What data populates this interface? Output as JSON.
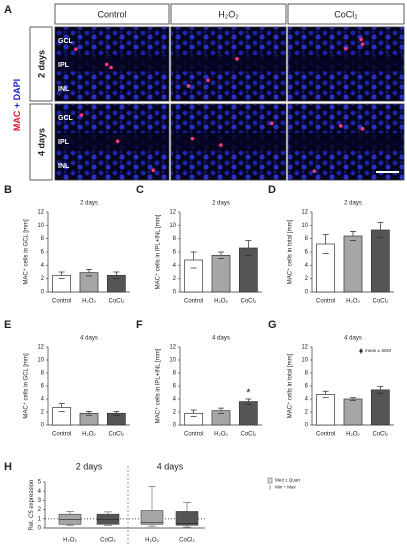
{
  "panel_a": {
    "label": "A",
    "columns": [
      "Control",
      "H₂O₂",
      "CoCl₂"
    ],
    "stain": {
      "mac": "MAC",
      "dapi": "+ DAPI"
    },
    "rows": [
      "2 days",
      "4 days"
    ],
    "layers": [
      "GCL",
      "IPL",
      "INL"
    ]
  },
  "chart_data": [
    {
      "type": "bar",
      "panel": "B",
      "title": "2 days",
      "y_label": "MAC⁺ cells in GCL [mm]",
      "categories": [
        "Control",
        "H₂O₂",
        "CoCl₂"
      ],
      "values": [
        2.5,
        2.9,
        2.5
      ],
      "errors": [
        0.5,
        0.5,
        0.5
      ],
      "colors": [
        "#ffffff",
        "#a6a6a6",
        "#555555"
      ],
      "ylim": [
        0,
        12
      ],
      "yticks": [
        0,
        2,
        4,
        6,
        8,
        10,
        12
      ]
    },
    {
      "type": "bar",
      "panel": "C",
      "title": "2 days",
      "y_label": "MAC⁺ cells in IPL+INL [mm]",
      "categories": [
        "Control",
        "H₂O₂",
        "CoCl₂"
      ],
      "values": [
        4.8,
        5.5,
        6.6
      ],
      "errors": [
        1.2,
        0.5,
        1.1
      ],
      "colors": [
        "#ffffff",
        "#a6a6a6",
        "#555555"
      ],
      "ylim": [
        0,
        12
      ],
      "yticks": [
        0,
        2,
        4,
        6,
        8,
        10,
        12
      ]
    },
    {
      "type": "bar",
      "panel": "D",
      "title": "2 days",
      "y_label": "MAC⁺ cells in total [mm]",
      "categories": [
        "Control",
        "H₂O₂",
        "CoCl₂"
      ],
      "values": [
        7.2,
        8.4,
        9.3
      ],
      "errors": [
        1.4,
        0.7,
        1.1
      ],
      "colors": [
        "#ffffff",
        "#a6a6a6",
        "#555555"
      ],
      "ylim": [
        0,
        12
      ],
      "yticks": [
        0,
        2,
        4,
        6,
        8,
        10,
        12
      ]
    },
    {
      "type": "bar",
      "panel": "E",
      "title": "4 days",
      "y_label": "MAC⁺ cells in GCL [mm]",
      "categories": [
        "Control",
        "H₂O₂",
        "CoCl₂"
      ],
      "values": [
        2.7,
        1.8,
        1.8
      ],
      "errors": [
        0.6,
        0.3,
        0.3
      ],
      "colors": [
        "#ffffff",
        "#a6a6a6",
        "#555555"
      ],
      "ylim": [
        0,
        12
      ],
      "yticks": [
        0,
        2,
        4,
        6,
        8,
        10,
        12
      ]
    },
    {
      "type": "bar",
      "panel": "F",
      "title": "4 days",
      "y_label": "MAC⁺ cells in IPL+INL [mm]",
      "categories": [
        "Control",
        "H₂O₂",
        "CoCl₂"
      ],
      "values": [
        1.8,
        2.2,
        3.6
      ],
      "errors": [
        0.5,
        0.4,
        0.4
      ],
      "colors": [
        "#ffffff",
        "#a6a6a6",
        "#555555"
      ],
      "ylim": [
        0,
        12
      ],
      "yticks": [
        0,
        2,
        4,
        6,
        8,
        10,
        12
      ],
      "annotation": "*"
    },
    {
      "type": "bar",
      "panel": "G",
      "title": "4 days",
      "y_label": "MAC⁺ cells in total [mm]",
      "categories": [
        "Control",
        "H₂O₂",
        "CoCl₂"
      ],
      "values": [
        4.7,
        4.0,
        5.4
      ],
      "errors": [
        0.5,
        0.2,
        0.5
      ],
      "colors": [
        "#ffffff",
        "#a6a6a6",
        "#555555"
      ],
      "ylim": [
        0,
        12
      ],
      "yticks": [
        0,
        2,
        4,
        6,
        8,
        10,
        12
      ],
      "legend": "mean ± SEM"
    },
    {
      "type": "box",
      "panel": "H",
      "y_label": [
        "Rel. ",
        "C5",
        " expression"
      ],
      "groups": [
        {
          "title": "2 days",
          "series": [
            {
              "name": "H₂O₂",
              "color": "#a6a6a6",
              "min": 0.3,
              "q1": 0.4,
              "median": 0.9,
              "q3": 1.5,
              "max": 1.8
            },
            {
              "name": "CoCl₂",
              "color": "#555555",
              "min": 0.3,
              "q1": 0.4,
              "median": 0.9,
              "q3": 1.5,
              "max": 1.75
            }
          ]
        },
        {
          "title": "4 days",
          "series": [
            {
              "name": "H₂O₂",
              "color": "#a6a6a6",
              "min": 0.2,
              "q1": 0.4,
              "median": 0.6,
              "q3": 1.9,
              "max": 4.5
            },
            {
              "name": "CoCl₂",
              "color": "#555555",
              "min": 0.1,
              "q1": 0.3,
              "median": 0.5,
              "q3": 1.8,
              "max": 2.8
            }
          ]
        }
      ],
      "reference_line": 1,
      "ylim": [
        0,
        5
      ],
      "yticks": [
        0,
        1,
        2,
        3,
        4,
        5
      ],
      "legend": [
        "Med ± Quart",
        "Min ÷ Max"
      ]
    }
  ]
}
